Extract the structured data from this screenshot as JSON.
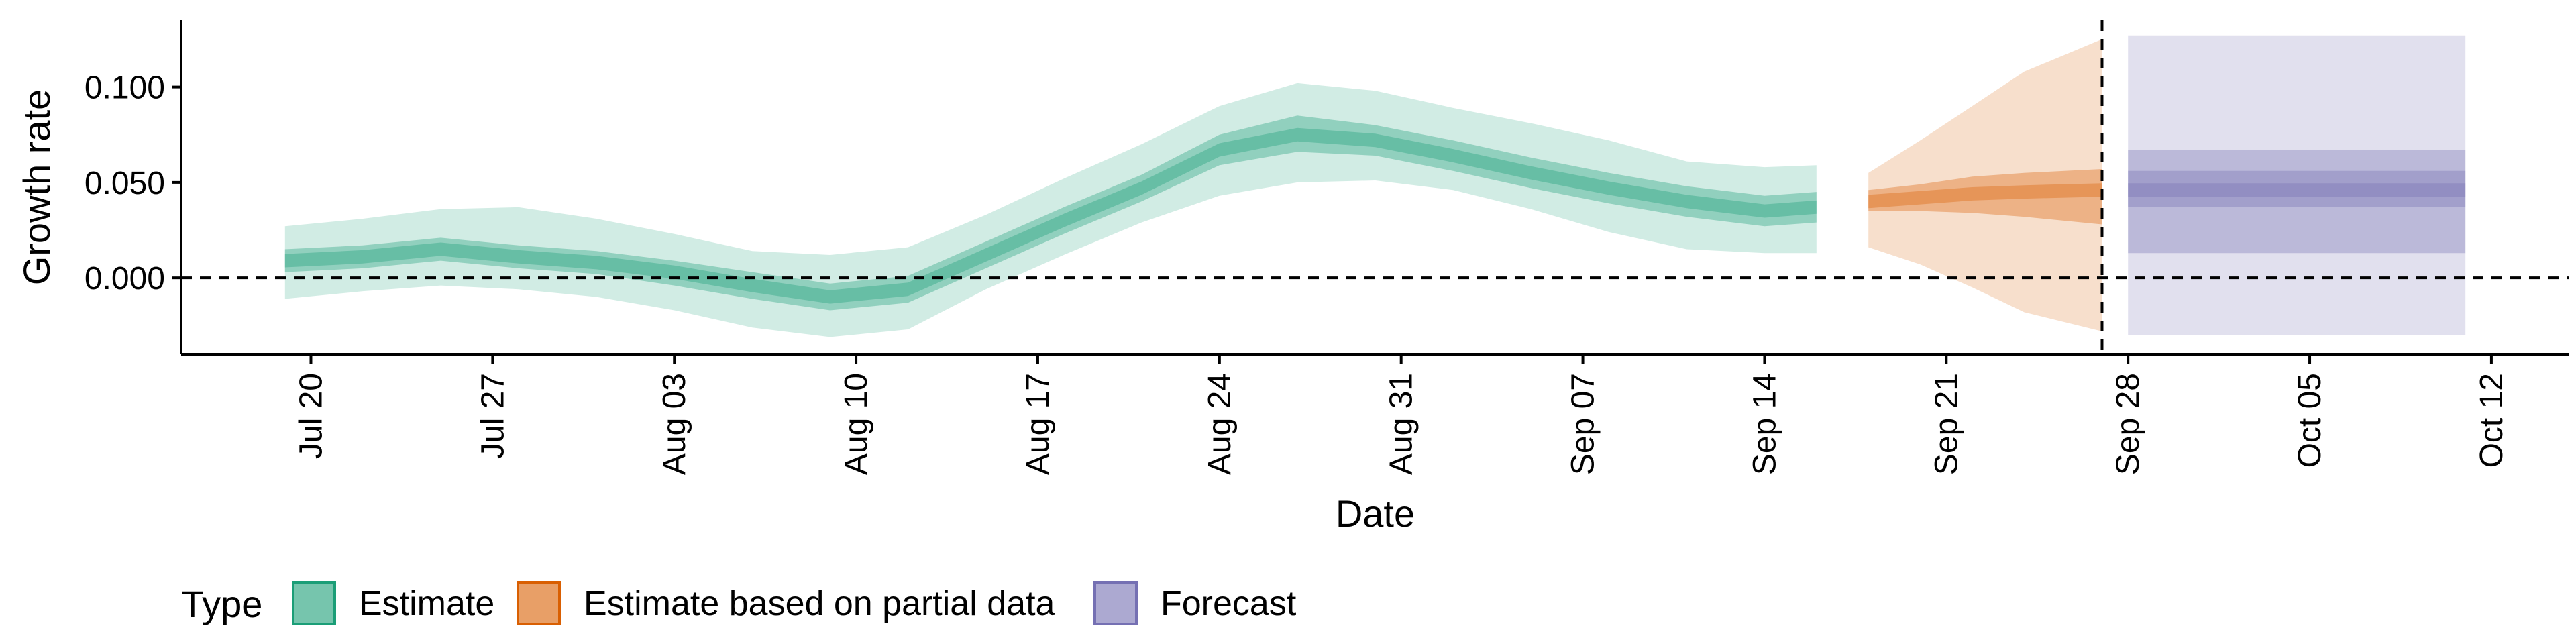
{
  "chart_data": {
    "type": "area",
    "title": "",
    "xlabel": "Date",
    "ylabel": "Growth rate",
    "x_ticks": [
      "Jul 20",
      "Jul 27",
      "Aug 03",
      "Aug 10",
      "Aug 17",
      "Aug 24",
      "Aug 31",
      "Sep 07",
      "Sep 14",
      "Sep 21",
      "Sep 28",
      "Oct 05",
      "Oct 12"
    ],
    "x_range": [
      "2020-07-15",
      "2020-10-15"
    ],
    "y_ticks": [
      "0.000",
      "0.050",
      "0.100"
    ],
    "ylim": [
      -0.04,
      0.135
    ],
    "reference_line_y": 0,
    "forecast_start_date": "2020-09-27",
    "grid": false,
    "legend": {
      "title": "Type",
      "position": "bottom",
      "entries": [
        {
          "label": "Estimate",
          "color": "#1b9e77"
        },
        {
          "label": "Estimate based on partial data",
          "color": "#d95f02"
        },
        {
          "label": "Forecast",
          "color": "#7570b3"
        }
      ]
    },
    "series": [
      {
        "name": "Estimate",
        "color": "#1b9e77",
        "x": [
          "2020-07-19",
          "2020-07-22",
          "2020-07-25",
          "2020-07-28",
          "2020-07-31",
          "2020-08-03",
          "2020-08-06",
          "2020-08-09",
          "2020-08-12",
          "2020-08-15",
          "2020-08-18",
          "2020-08-21",
          "2020-08-24",
          "2020-08-27",
          "2020-08-30",
          "2020-09-02",
          "2020-09-05",
          "2020-09-08",
          "2020-09-11",
          "2020-09-14",
          "2020-09-16"
        ],
        "median": [
          0.009,
          0.011,
          0.015,
          0.011,
          0.008,
          0.003,
          -0.004,
          -0.01,
          -0.006,
          0.012,
          0.03,
          0.047,
          0.067,
          0.075,
          0.072,
          0.064,
          0.055,
          0.047,
          0.04,
          0.035,
          0.037
        ],
        "lower_50": [
          0.003,
          0.005,
          0.009,
          0.005,
          0.002,
          -0.004,
          -0.011,
          -0.017,
          -0.013,
          0.005,
          0.023,
          0.04,
          0.059,
          0.066,
          0.064,
          0.056,
          0.047,
          0.039,
          0.032,
          0.027,
          0.029
        ],
        "upper_50": [
          0.015,
          0.017,
          0.021,
          0.017,
          0.014,
          0.009,
          0.003,
          -0.003,
          0.001,
          0.019,
          0.037,
          0.054,
          0.075,
          0.085,
          0.08,
          0.072,
          0.063,
          0.055,
          0.048,
          0.043,
          0.045
        ],
        "lower_90": [
          -0.011,
          -0.007,
          -0.004,
          -0.006,
          -0.01,
          -0.017,
          -0.026,
          -0.031,
          -0.027,
          -0.006,
          0.012,
          0.029,
          0.043,
          0.05,
          0.051,
          0.046,
          0.036,
          0.024,
          0.015,
          0.013,
          0.013
        ],
        "upper_90": [
          0.027,
          0.031,
          0.036,
          0.037,
          0.031,
          0.023,
          0.014,
          0.012,
          0.016,
          0.033,
          0.052,
          0.07,
          0.09,
          0.102,
          0.098,
          0.089,
          0.081,
          0.072,
          0.061,
          0.058,
          0.059
        ]
      },
      {
        "name": "Estimate based on partial data",
        "color": "#d95f02",
        "x": [
          "2020-09-18",
          "2020-09-20",
          "2020-09-22",
          "2020-09-24",
          "2020-09-27"
        ],
        "median": [
          0.04,
          0.042,
          0.044,
          0.045,
          0.046
        ],
        "lower_50": [
          0.035,
          0.035,
          0.034,
          0.032,
          0.028
        ],
        "upper_50": [
          0.046,
          0.049,
          0.053,
          0.055,
          0.057
        ],
        "lower_90": [
          0.016,
          0.007,
          -0.005,
          -0.018,
          -0.028
        ],
        "upper_90": [
          0.055,
          0.072,
          0.09,
          0.108,
          0.125
        ]
      },
      {
        "name": "Forecast",
        "color": "#7570b3",
        "x": [
          "2020-09-28",
          "2020-10-11"
        ],
        "median": [
          0.046,
          0.046
        ],
        "lower_50": [
          0.037,
          0.037
        ],
        "upper_50": [
          0.056,
          0.056
        ],
        "lower_90": [
          0.013,
          0.013
        ],
        "upper_90": [
          0.067,
          0.067
        ],
        "lower_outer": [
          -0.03,
          -0.03
        ],
        "upper_outer": [
          0.127,
          0.127
        ]
      }
    ]
  }
}
